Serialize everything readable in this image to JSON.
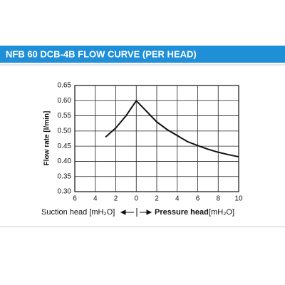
{
  "chart_data": {
    "type": "line",
    "title": "NFB 60 DCB-4B FLOW CURVE (PER HEAD)",
    "y_label": "Flow rate [l/min]",
    "suction_label": "Suction head [mH₂O]",
    "pressure_label": "Pressure head",
    "pressure_unit": "[mH₂O]",
    "x": [
      -3,
      -2,
      -1,
      0,
      1,
      2,
      3,
      4,
      5,
      6,
      7,
      8,
      9,
      10
    ],
    "values": [
      0.48,
      0.51,
      0.55,
      0.6,
      0.565,
      0.53,
      0.505,
      0.485,
      0.465,
      0.452,
      0.44,
      0.43,
      0.422,
      0.415
    ],
    "color": "#111111",
    "xlim": [
      -6,
      10
    ],
    "xticks": [
      {
        "value": -6,
        "label": "6"
      },
      {
        "value": -4,
        "label": "4"
      },
      {
        "value": -2,
        "label": "2"
      },
      0,
      2,
      4,
      6,
      8,
      10
    ],
    "ylim": [
      0.3,
      0.65
    ],
    "yticks": [
      {
        "value": 0.3,
        "label": "0.30"
      },
      0.35,
      {
        "value": 0.4,
        "label": "0.40"
      },
      0.45,
      {
        "value": 0.5,
        "label": "0.50"
      },
      0.55,
      {
        "value": 0.6,
        "label": "0.60"
      },
      0.65
    ],
    "grid": true
  }
}
